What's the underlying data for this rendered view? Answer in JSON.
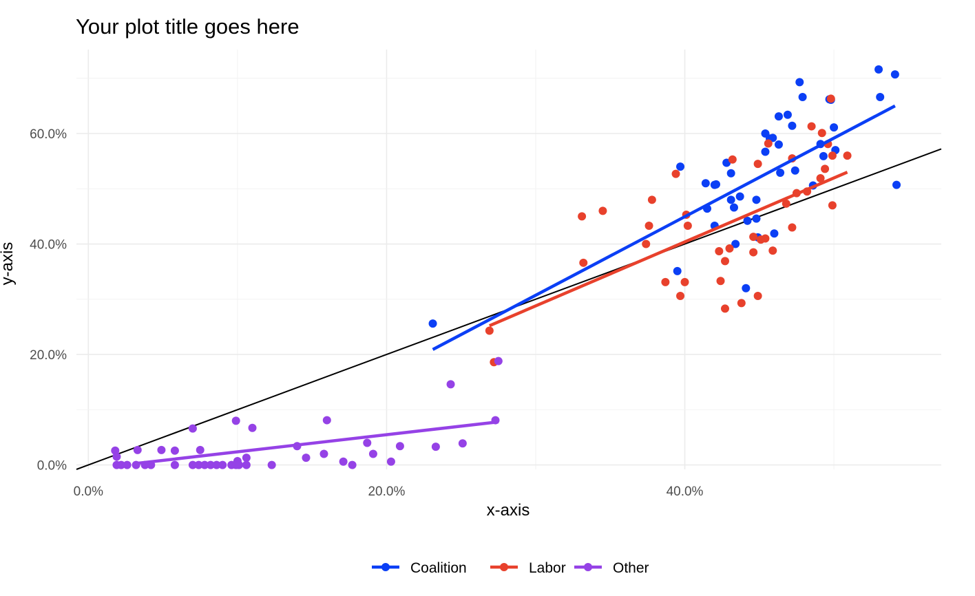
{
  "chart_data": {
    "type": "scatter",
    "title": "Your plot title goes here",
    "xlabel": "x-axis",
    "ylabel": "y-axis",
    "xlim": [
      -0.8,
      57.2
    ],
    "ylim": [
      -0.8,
      75.2
    ],
    "x_ticks": [
      0,
      20,
      40
    ],
    "x_tick_labels": [
      "0.0%",
      "20.0%",
      "40.0%"
    ],
    "y_ticks": [
      0,
      20,
      40,
      60
    ],
    "y_tick_labels": [
      "0.0%",
      "20.0%",
      "40.0%",
      "60.0%"
    ],
    "grid": true,
    "legend_position": "bottom",
    "reference_line": {
      "slope": 1,
      "intercept": 0,
      "color": "#000000"
    },
    "series": [
      {
        "name": "Coalition",
        "color": "#0b3ff5",
        "fit": {
          "x": [
            23.1,
            54.1
          ],
          "y": [
            20.9,
            65.0
          ]
        },
        "points": [
          [
            23.1,
            25.6
          ],
          [
            39.5,
            35.1
          ],
          [
            39.7,
            54.0
          ],
          [
            41.4,
            51.0
          ],
          [
            41.5,
            46.4
          ],
          [
            42.0,
            50.7
          ],
          [
            42.1,
            50.8
          ],
          [
            42.0,
            43.3
          ],
          [
            42.8,
            54.7
          ],
          [
            43.1,
            52.8
          ],
          [
            43.1,
            48.0
          ],
          [
            43.3,
            46.6
          ],
          [
            43.4,
            40.0
          ],
          [
            43.7,
            48.6
          ],
          [
            44.1,
            32.0
          ],
          [
            44.2,
            44.2
          ],
          [
            44.8,
            48.0
          ],
          [
            44.8,
            44.6
          ],
          [
            44.9,
            41.2
          ],
          [
            45.4,
            60.0
          ],
          [
            45.4,
            56.7
          ],
          [
            45.7,
            59.1
          ],
          [
            45.9,
            59.2
          ],
          [
            46.0,
            41.9
          ],
          [
            46.3,
            63.1
          ],
          [
            46.3,
            58.0
          ],
          [
            46.4,
            52.9
          ],
          [
            46.9,
            63.4
          ],
          [
            47.2,
            61.4
          ],
          [
            47.4,
            53.3
          ],
          [
            47.7,
            69.3
          ],
          [
            47.9,
            66.6
          ],
          [
            48.6,
            50.6
          ],
          [
            49.1,
            58.1
          ],
          [
            49.3,
            55.9
          ],
          [
            49.7,
            66.2
          ],
          [
            49.8,
            66.1
          ],
          [
            50.0,
            61.1
          ],
          [
            50.1,
            57.0
          ],
          [
            53.0,
            71.6
          ],
          [
            53.1,
            66.6
          ],
          [
            54.1,
            70.7
          ],
          [
            54.2,
            50.7
          ]
        ]
      },
      {
        "name": "Labor",
        "color": "#e8412c",
        "fit": {
          "x": [
            26.9,
            50.9
          ],
          "y": [
            25.2,
            53.0
          ]
        },
        "points": [
          [
            26.9,
            24.3
          ],
          [
            27.2,
            18.6
          ],
          [
            33.1,
            45.0
          ],
          [
            33.2,
            36.6
          ],
          [
            34.5,
            46.0
          ],
          [
            37.4,
            40.0
          ],
          [
            37.6,
            43.3
          ],
          [
            37.8,
            48.0
          ],
          [
            38.7,
            33.1
          ],
          [
            39.4,
            52.7
          ],
          [
            39.7,
            30.6
          ],
          [
            40.0,
            33.1
          ],
          [
            40.1,
            45.3
          ],
          [
            40.2,
            43.3
          ],
          [
            42.3,
            38.7
          ],
          [
            42.4,
            33.3
          ],
          [
            42.7,
            36.9
          ],
          [
            42.7,
            28.3
          ],
          [
            43.0,
            39.2
          ],
          [
            43.2,
            55.3
          ],
          [
            43.8,
            29.3
          ],
          [
            44.6,
            38.5
          ],
          [
            44.6,
            41.3
          ],
          [
            44.9,
            54.5
          ],
          [
            44.9,
            30.6
          ],
          [
            45.1,
            40.8
          ],
          [
            45.4,
            41.0
          ],
          [
            45.6,
            58.2
          ],
          [
            45.9,
            38.8
          ],
          [
            46.8,
            47.3
          ],
          [
            47.2,
            55.5
          ],
          [
            47.2,
            43.0
          ],
          [
            47.5,
            49.2
          ],
          [
            48.2,
            49.5
          ],
          [
            48.5,
            61.3
          ],
          [
            49.1,
            51.9
          ],
          [
            49.2,
            60.1
          ],
          [
            49.4,
            53.6
          ],
          [
            49.6,
            58.1
          ],
          [
            49.8,
            66.3
          ],
          [
            49.9,
            47.0
          ],
          [
            49.9,
            56.0
          ],
          [
            50.9,
            56.0
          ]
        ]
      },
      {
        "name": "Other",
        "color": "#9542e6",
        "fit": {
          "x": [
            3.3,
            27.5
          ],
          "y": [
            0.3,
            7.8
          ]
        },
        "points": [
          [
            1.8,
            2.6
          ],
          [
            1.9,
            1.5
          ],
          [
            1.9,
            0.0
          ],
          [
            2.2,
            0.0
          ],
          [
            2.6,
            0.0
          ],
          [
            3.2,
            0.0
          ],
          [
            3.3,
            2.7
          ],
          [
            3.8,
            0.0
          ],
          [
            4.2,
            0.0
          ],
          [
            4.9,
            2.7
          ],
          [
            5.8,
            0.0
          ],
          [
            5.8,
            2.6
          ],
          [
            7.0,
            0.0
          ],
          [
            7.0,
            6.6
          ],
          [
            7.4,
            0.0
          ],
          [
            7.5,
            2.7
          ],
          [
            7.8,
            0.0
          ],
          [
            8.2,
            0.0
          ],
          [
            8.6,
            0.0
          ],
          [
            9.0,
            0.0
          ],
          [
            9.6,
            0.0
          ],
          [
            9.9,
            8.0
          ],
          [
            9.9,
            0.0
          ],
          [
            10.0,
            0.7
          ],
          [
            10.1,
            0.0
          ],
          [
            10.6,
            1.3
          ],
          [
            10.6,
            0.0
          ],
          [
            11.0,
            6.7
          ],
          [
            12.3,
            0.0
          ],
          [
            14.0,
            3.4
          ],
          [
            14.6,
            1.3
          ],
          [
            15.8,
            2.0
          ],
          [
            16.0,
            8.1
          ],
          [
            17.1,
            0.6
          ],
          [
            17.7,
            0.0
          ],
          [
            18.7,
            4.0
          ],
          [
            19.1,
            2.0
          ],
          [
            20.3,
            0.6
          ],
          [
            20.9,
            3.4
          ],
          [
            23.3,
            3.3
          ],
          [
            24.3,
            14.6
          ],
          [
            25.1,
            3.9
          ],
          [
            27.3,
            8.1
          ],
          [
            27.5,
            18.8
          ]
        ]
      }
    ]
  }
}
